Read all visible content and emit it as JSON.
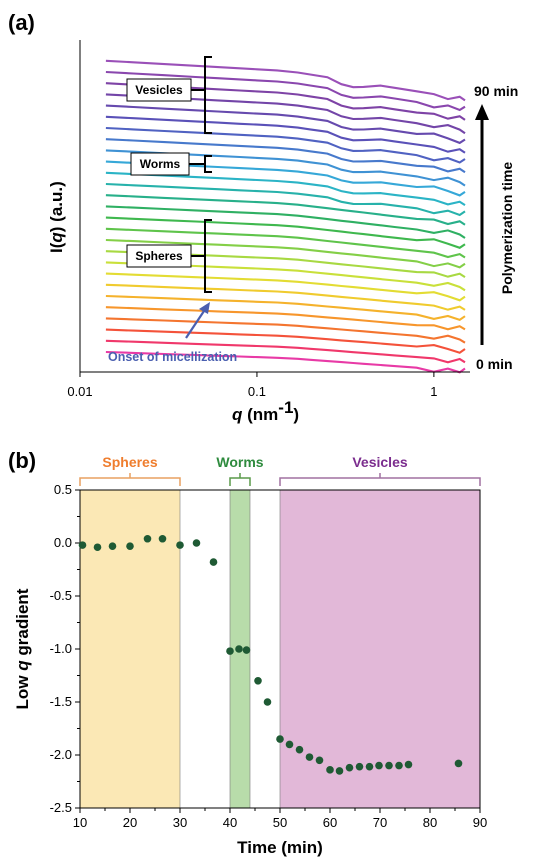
{
  "chart_data": [
    {
      "type": "line",
      "panel_label": "(a)",
      "xlabel_main": "q",
      "xlabel_unit": " (nm",
      "xlabel_exp": "-1",
      "xlabel_close": ")",
      "ylabel_pre": "I(",
      "ylabel_q": "q",
      "ylabel_post": ") (a.u.)",
      "x_scale": "log",
      "xlim": [
        0.01,
        1.6
      ],
      "x_ticks": [
        {
          "value": 0.01,
          "label": "0.01"
        },
        {
          "value": 0.1,
          "label": "0.1"
        },
        {
          "value": 1,
          "label": "1"
        }
      ],
      "annotations": {
        "vesicles": "Vesicles",
        "worms": "Worms",
        "spheres": "Spheres",
        "onset": "Onset of micellization",
        "time_axis": "Polymerization time",
        "time_top": "90 min",
        "time_bottom": "0 min"
      },
      "colors": {
        "onset_arrow": "#4a5fb0",
        "time_arrow": "#000000"
      },
      "series_count": 27,
      "series_colors": [
        "#e83aa6",
        "#f0386b",
        "#f4523a",
        "#f4752f",
        "#f7962c",
        "#f5b22c",
        "#f0cb2e",
        "#e3dc33",
        "#c9e03a",
        "#a8d942",
        "#84cf47",
        "#5fc44b",
        "#3fb84e",
        "#2fb063",
        "#28b08a",
        "#27b2ab",
        "#2bb4c6",
        "#36a8d8",
        "#3f92d4",
        "#4779cc",
        "#5062c2",
        "#5a51b8",
        "#664aae",
        "#7345a8",
        "#7e43a6",
        "#8a47ae",
        "#9a50b8"
      ],
      "x": [
        0.014,
        0.02,
        0.03,
        0.045,
        0.06,
        0.08,
        0.1,
        0.13,
        0.17,
        0.2,
        0.25,
        0.3,
        0.35,
        0.4,
        0.5,
        0.6,
        0.8,
        1.0,
        1.2,
        1.4,
        1.5
      ]
    },
    {
      "type": "scatter",
      "panel_label": "(b)",
      "xlabel": "Time (min)",
      "ylabel_pre": "Low ",
      "ylabel_q": "q",
      "ylabel_post": " gradient",
      "xlim": [
        10,
        90
      ],
      "ylim": [
        -2.5,
        0.5
      ],
      "x_ticks": [
        10,
        20,
        30,
        40,
        50,
        60,
        70,
        80,
        90
      ],
      "y_ticks": [
        "0.5",
        "0.0",
        "-0.5",
        "-1.0",
        "-1.5",
        "-2.0",
        "-2.5"
      ],
      "regions": [
        {
          "label": "Spheres",
          "start": 10,
          "end": 30,
          "color": "#fbe8b5",
          "edge": "#e8a060",
          "label_color": "#ef7d2d"
        },
        {
          "label": "Worms",
          "start": 40,
          "end": 44,
          "color": "#b8dcaa",
          "edge": "#5a9a4a",
          "label_color": "#2e8b3e"
        },
        {
          "label": "Vesicles",
          "start": 50,
          "end": 90,
          "color": "#e2b8d8",
          "edge": "#a070a0",
          "label_color": "#7b2d8e"
        }
      ],
      "marker_color": "#1f5a34",
      "points": [
        [
          10.5,
          -0.02
        ],
        [
          13.5,
          -0.04
        ],
        [
          16.5,
          -0.03
        ],
        [
          20,
          -0.03
        ],
        [
          23.5,
          0.04
        ],
        [
          26.5,
          0.04
        ],
        [
          30,
          -0.02
        ],
        [
          33.3,
          0.0
        ],
        [
          36.7,
          -0.18
        ],
        [
          40,
          -1.02
        ],
        [
          41.8,
          -1.0
        ],
        [
          43.3,
          -1.01
        ],
        [
          45.6,
          -1.3
        ],
        [
          47.5,
          -1.5
        ],
        [
          50,
          -1.85
        ],
        [
          51.9,
          -1.9
        ],
        [
          53.9,
          -1.95
        ],
        [
          55.9,
          -2.02
        ],
        [
          57.9,
          -2.05
        ],
        [
          60,
          -2.14
        ],
        [
          61.9,
          -2.15
        ],
        [
          63.9,
          -2.12
        ],
        [
          65.9,
          -2.11
        ],
        [
          67.9,
          -2.11
        ],
        [
          69.8,
          -2.1
        ],
        [
          71.8,
          -2.1
        ],
        [
          73.8,
          -2.1
        ],
        [
          75.7,
          -2.09
        ],
        [
          85.7,
          -2.08
        ]
      ]
    }
  ]
}
